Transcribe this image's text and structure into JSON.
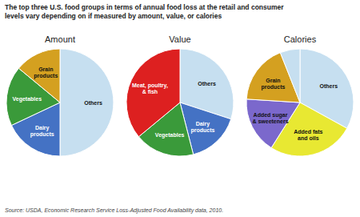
{
  "title": "The top three U.S. food groups in terms of annual food loss at the retail and consumer\nlevels vary depending on if measured by amount, value, or calories",
  "annotations": [
    "Source: USDA, Economic Research Service Loss-Adjusted Food Availability data, 2010."
  ],
  "chart_data": [
    {
      "type": "pie",
      "title": "Amount",
      "categories": [
        "Others",
        "Dairy\nproducts",
        "Vegetables",
        "Grain\nproducts"
      ],
      "values": [
        50,
        18,
        18,
        14
      ],
      "colors": [
        "#c6dff0",
        "#4472c4",
        "#3a9a3a",
        "#d4a020"
      ]
    },
    {
      "type": "pie",
      "title": "Value",
      "categories": [
        "Others",
        "Dairy\nproducts",
        "Vegetables",
        "Meat, poultry,\n& fish"
      ],
      "values": [
        30,
        16,
        18,
        36
      ],
      "colors": [
        "#c6dff0",
        "#4472c4",
        "#3a9a3a",
        "#dd2020"
      ]
    },
    {
      "type": "pie",
      "title": "Calories",
      "categories": [
        "Others",
        "Added fats\nand oils",
        "Added sugar\n& sweeteners",
        "Grain\nproducts",
        null
      ],
      "values": [
        33,
        26,
        17,
        18,
        6
      ],
      "colors": [
        "#c6dff0",
        "#e8e832",
        "#7b68cc",
        "#d4a020",
        "#c6dff0"
      ]
    }
  ]
}
